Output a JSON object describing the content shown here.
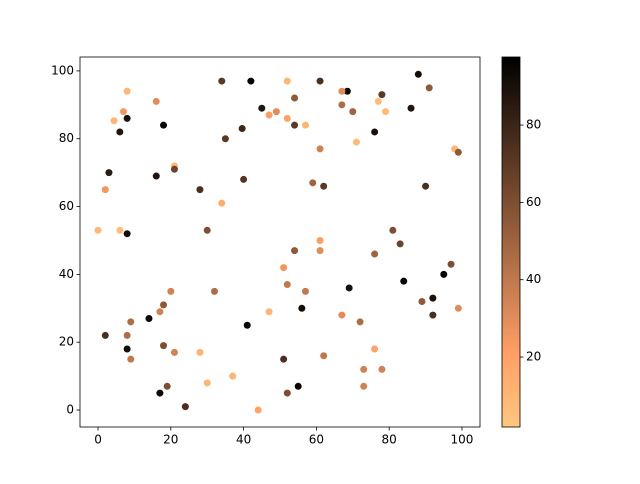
{
  "chart_data": {
    "type": "scatter",
    "cmap": "copper_r",
    "x": [
      8,
      4.4,
      7,
      8,
      6,
      18,
      16,
      34,
      42,
      52,
      61,
      68.5,
      67,
      88,
      91,
      45,
      47,
      49,
      52,
      54,
      57,
      54,
      39.6,
      35,
      67,
      70,
      77,
      78,
      79,
      76,
      86,
      71,
      61,
      98,
      99,
      3,
      2,
      16,
      21,
      21,
      28,
      40,
      59,
      62,
      90,
      34,
      0,
      6,
      8,
      30,
      61,
      61,
      54,
      81,
      83,
      76,
      97,
      95,
      51,
      52,
      57,
      20,
      32,
      84,
      69,
      92,
      89,
      56,
      47,
      99,
      18,
      17,
      14,
      9,
      67,
      72,
      41,
      92,
      2,
      8,
      8,
      9,
      18,
      21,
      28,
      51,
      62,
      76,
      73,
      78,
      37,
      30,
      19,
      17,
      24,
      44,
      52,
      55,
      73
    ],
    "values": [
      94,
      85.3,
      88,
      86,
      82,
      84,
      91,
      97,
      97,
      97,
      97,
      94,
      94,
      99,
      95,
      89,
      87,
      88,
      86,
      92,
      84,
      84,
      83,
      80,
      90,
      88,
      91,
      93,
      88,
      82,
      89,
      79,
      77,
      77,
      76,
      70,
      65,
      69,
      72,
      71,
      65,
      68,
      67,
      66,
      66,
      61,
      53,
      53,
      52,
      53,
      50,
      47,
      47,
      53,
      49,
      46,
      43,
      40,
      42,
      37,
      35,
      35,
      35,
      38,
      36,
      33,
      32,
      30,
      29,
      30,
      31,
      29,
      27,
      26,
      28,
      26,
      25,
      28,
      22,
      22,
      18,
      15,
      19,
      17,
      17,
      15,
      16,
      18,
      12,
      12,
      10,
      8,
      7,
      5,
      1,
      0,
      5,
      7,
      7
    ],
    "color_values": [
      10,
      10,
      25,
      90,
      88,
      95,
      30,
      70,
      95,
      10,
      75,
      95,
      30,
      92,
      55,
      88,
      22,
      30,
      20,
      55,
      10,
      70,
      80,
      70,
      45,
      50,
      8,
      70,
      8,
      90,
      88,
      8,
      35,
      10,
      55,
      85,
      25,
      88,
      10,
      65,
      75,
      72,
      50,
      70,
      75,
      15,
      10,
      8,
      92,
      60,
      22,
      30,
      55,
      60,
      65,
      50,
      60,
      95,
      25,
      40,
      40,
      35,
      45,
      95,
      90,
      90,
      55,
      92,
      10,
      30,
      55,
      35,
      95,
      45,
      30,
      45,
      95,
      75,
      75,
      45,
      92,
      40,
      60,
      35,
      12,
      75,
      40,
      20,
      35,
      35,
      12,
      10,
      60,
      95,
      75,
      20,
      60,
      95,
      35
    ],
    "xlim": [
      -4.95,
      104.95
    ],
    "ylim": [
      -5,
      104.1
    ],
    "xticks": [
      0,
      20,
      40,
      60,
      80,
      100
    ],
    "yticks": [
      0,
      20,
      40,
      60,
      80,
      100
    ],
    "clim": [
      1.9,
      97.6
    ],
    "cticks": [
      20,
      40,
      60,
      80
    ]
  }
}
